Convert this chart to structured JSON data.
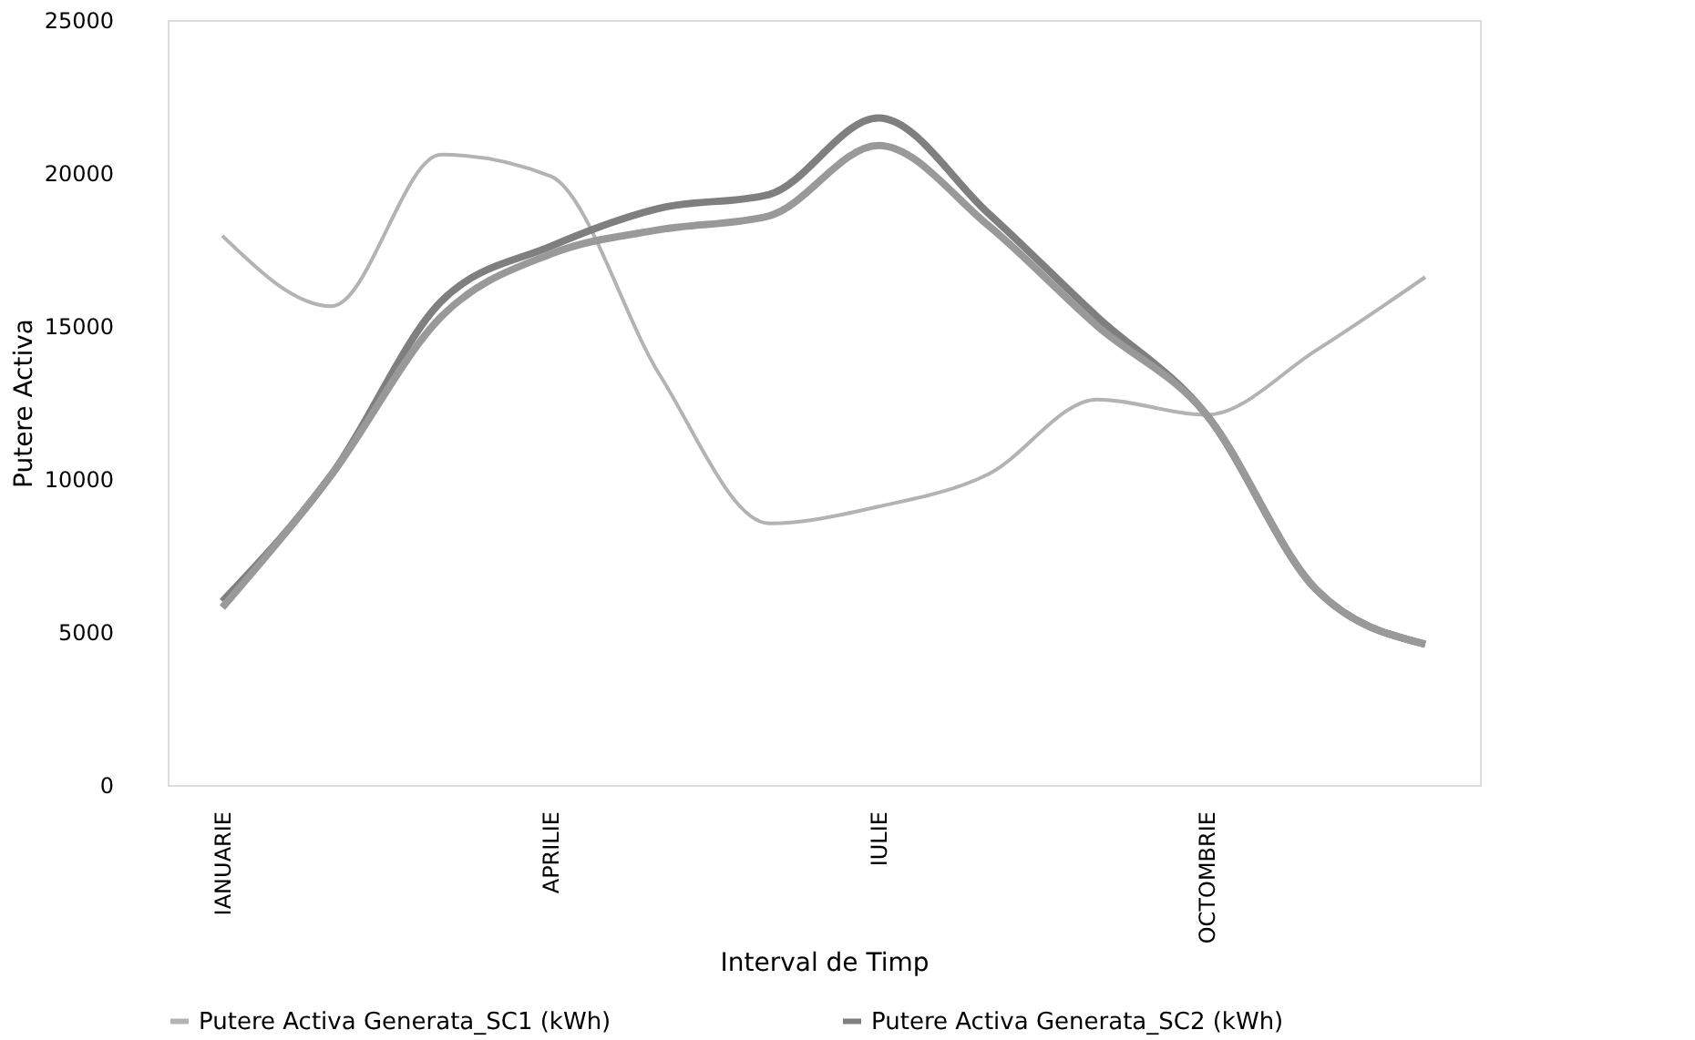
{
  "chart_data": {
    "type": "line",
    "xlabel": "Interval de Timp",
    "ylabel": "Putere Activa",
    "categories": [
      "IANUARIE",
      null,
      null,
      "APRILIE",
      null,
      null,
      "IULIE",
      null,
      null,
      "OCTOMBRIE",
      null,
      null
    ],
    "series": [
      {
        "name": "Putere Activa Generata_SC1 (kWh)",
        "color": "#b3b3b3",
        "values": [
          17950,
          15650,
          20600,
          19900,
          13400,
          8550,
          9100,
          10150,
          12600,
          12100,
          14200,
          16600
        ]
      },
      {
        "name": "Putere Activa Generata_SC2 (kWh)",
        "color": "#7f7f7f",
        "values": [
          6000,
          10150,
          15800,
          17600,
          18850,
          19300,
          21800,
          18700,
          15300,
          12100,
          6400,
          4600
        ]
      },
      {
        "color": "#999999",
        "values": [
          5800,
          10150,
          15300,
          17350,
          18150,
          18600,
          20900,
          18300,
          15000,
          12100,
          6400,
          4600
        ]
      }
    ],
    "ylim": [
      0,
      25000
    ],
    "yticks": [
      0,
      5000,
      10000,
      15000,
      20000,
      25000
    ],
    "grid": false,
    "legend": "bottom",
    "line_style": "solid"
  }
}
